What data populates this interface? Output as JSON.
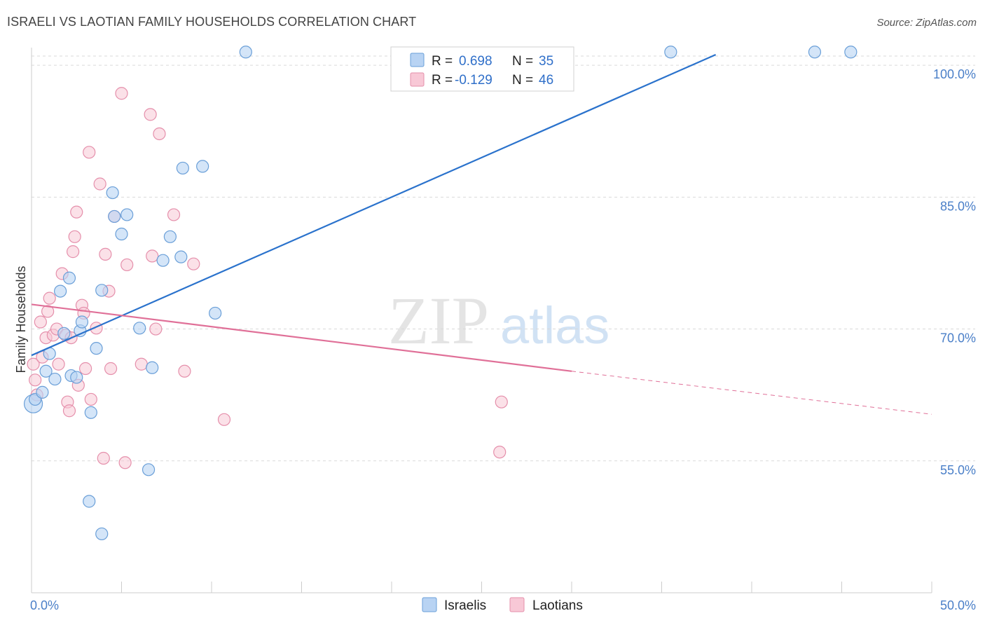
{
  "header": {
    "title": "ISRAELI VS LAOTIAN FAMILY HOUSEHOLDS CORRELATION CHART",
    "source": "Source: ZipAtlas.com"
  },
  "watermark": {
    "zip": "ZIP",
    "atlas": "atlas"
  },
  "colors": {
    "israeli_fill": "#b8d3f3",
    "israeli_stroke": "#6a9fd8",
    "israeli_line": "#2a72cc",
    "laotian_fill": "#f8c8d6",
    "laotian_stroke": "#e58fab",
    "laotian_line": "#e07098",
    "axis_text": "#4a7fc8",
    "grid": "#d9d9d9"
  },
  "legend": {
    "rows": [
      {
        "r_label": "R =",
        "r_value": "0.698",
        "n_label": "N =",
        "n_value": "35"
      },
      {
        "r_label": "R =",
        "r_value": "-0.129",
        "n_label": "N =",
        "n_value": "46"
      }
    ]
  },
  "bottom_legend": {
    "israelis": "Israelis",
    "laotians": "Laotians"
  },
  "chart_data": {
    "type": "scatter",
    "title": "ISRAELI VS LAOTIAN FAMILY HOUSEHOLDS CORRELATION CHART",
    "xlabel": "",
    "ylabel": "Family Households",
    "xlim": [
      0,
      50
    ],
    "ylim": [
      40,
      102
    ],
    "x_tick_labels": [
      "0.0%",
      "50.0%"
    ],
    "y_ticks": [
      55,
      70,
      85,
      100
    ],
    "y_tick_labels": [
      "55.0%",
      "70.0%",
      "85.0%",
      "100.0%"
    ],
    "grid": true,
    "legend_position": "top-center",
    "series": [
      {
        "name": "Israelis",
        "r": 0.698,
        "n": 35,
        "trend": {
          "x": [
            0,
            38
          ],
          "y": [
            67.0,
            101.2
          ]
        },
        "points": [
          {
            "x": 0.1,
            "y": 61.5
          },
          {
            "x": 0.2,
            "y": 62.0
          },
          {
            "x": 0.6,
            "y": 62.8
          },
          {
            "x": 0.8,
            "y": 65.2
          },
          {
            "x": 1.0,
            "y": 67.2
          },
          {
            "x": 1.3,
            "y": 64.3
          },
          {
            "x": 1.6,
            "y": 74.3
          },
          {
            "x": 1.8,
            "y": 69.5
          },
          {
            "x": 2.1,
            "y": 75.8
          },
          {
            "x": 2.2,
            "y": 64.7
          },
          {
            "x": 2.5,
            "y": 64.5
          },
          {
            "x": 2.7,
            "y": 69.8
          },
          {
            "x": 2.8,
            "y": 70.8
          },
          {
            "x": 3.3,
            "y": 60.5
          },
          {
            "x": 3.6,
            "y": 67.8
          },
          {
            "x": 3.9,
            "y": 74.4
          },
          {
            "x": 4.5,
            "y": 85.5
          },
          {
            "x": 4.6,
            "y": 82.8
          },
          {
            "x": 5.0,
            "y": 80.8
          },
          {
            "x": 5.3,
            "y": 83.0
          },
          {
            "x": 6.0,
            "y": 70.1
          },
          {
            "x": 6.7,
            "y": 65.6
          },
          {
            "x": 7.3,
            "y": 77.8
          },
          {
            "x": 7.7,
            "y": 80.5
          },
          {
            "x": 8.3,
            "y": 78.2
          },
          {
            "x": 8.4,
            "y": 88.3
          },
          {
            "x": 9.5,
            "y": 88.5
          },
          {
            "x": 10.2,
            "y": 71.8
          },
          {
            "x": 11.9,
            "y": 101.5
          },
          {
            "x": 35.5,
            "y": 101.5
          },
          {
            "x": 43.5,
            "y": 101.5
          },
          {
            "x": 45.5,
            "y": 101.5
          },
          {
            "x": 6.5,
            "y": 54.0
          },
          {
            "x": 3.2,
            "y": 50.4
          },
          {
            "x": 3.9,
            "y": 46.7
          }
        ]
      },
      {
        "name": "Laotians",
        "r": -0.129,
        "n": 46,
        "trend": {
          "x": [
            0,
            30
          ],
          "y": [
            72.8,
            65.2
          ]
        },
        "trend_dashed": {
          "x": [
            30,
            50
          ],
          "y": [
            65.2,
            60.3
          ]
        },
        "points": [
          {
            "x": 0.1,
            "y": 66.0
          },
          {
            "x": 0.2,
            "y": 64.2
          },
          {
            "x": 0.3,
            "y": 62.5
          },
          {
            "x": 0.5,
            "y": 70.8
          },
          {
            "x": 0.6,
            "y": 66.8
          },
          {
            "x": 0.8,
            "y": 69.0
          },
          {
            "x": 0.9,
            "y": 72.0
          },
          {
            "x": 1.0,
            "y": 73.5
          },
          {
            "x": 1.2,
            "y": 69.3
          },
          {
            "x": 1.4,
            "y": 70.0
          },
          {
            "x": 1.5,
            "y": 66.0
          },
          {
            "x": 1.7,
            "y": 76.3
          },
          {
            "x": 1.9,
            "y": 69.3
          },
          {
            "x": 2.0,
            "y": 61.7
          },
          {
            "x": 2.1,
            "y": 60.7
          },
          {
            "x": 2.2,
            "y": 69.0
          },
          {
            "x": 2.3,
            "y": 78.8
          },
          {
            "x": 2.4,
            "y": 80.5
          },
          {
            "x": 2.5,
            "y": 83.3
          },
          {
            "x": 2.6,
            "y": 63.6
          },
          {
            "x": 2.8,
            "y": 72.7
          },
          {
            "x": 2.9,
            "y": 71.8
          },
          {
            "x": 3.0,
            "y": 65.5
          },
          {
            "x": 3.2,
            "y": 90.1
          },
          {
            "x": 3.3,
            "y": 62.0
          },
          {
            "x": 3.6,
            "y": 70.1
          },
          {
            "x": 3.8,
            "y": 86.5
          },
          {
            "x": 4.0,
            "y": 55.3
          },
          {
            "x": 4.1,
            "y": 78.5
          },
          {
            "x": 4.3,
            "y": 74.3
          },
          {
            "x": 4.4,
            "y": 65.5
          },
          {
            "x": 4.6,
            "y": 82.8
          },
          {
            "x": 5.0,
            "y": 96.8
          },
          {
            "x": 5.2,
            "y": 54.8
          },
          {
            "x": 5.3,
            "y": 77.3
          },
          {
            "x": 6.1,
            "y": 66.0
          },
          {
            "x": 6.6,
            "y": 94.4
          },
          {
            "x": 6.7,
            "y": 78.3
          },
          {
            "x": 6.9,
            "y": 70.0
          },
          {
            "x": 7.1,
            "y": 92.2
          },
          {
            "x": 7.9,
            "y": 83.0
          },
          {
            "x": 8.5,
            "y": 65.2
          },
          {
            "x": 9.0,
            "y": 77.4
          },
          {
            "x": 10.7,
            "y": 59.7
          },
          {
            "x": 26.0,
            "y": 56.0
          },
          {
            "x": 26.1,
            "y": 61.7
          }
        ]
      }
    ]
  }
}
